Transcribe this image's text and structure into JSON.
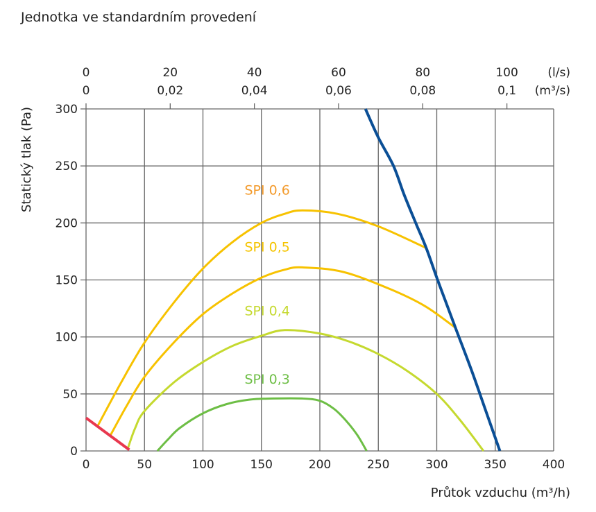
{
  "title": "Jednotka ve standardním provedení",
  "chart_data": {
    "type": "line",
    "title": "Jednotka ve standardním provedení",
    "xlabel": "Průtok vzduchu  (m³/h)",
    "ylabel": "Statický tlak (Pa)",
    "xlim": [
      0,
      400
    ],
    "ylim": [
      0,
      300
    ],
    "x_ticks": [
      0,
      50,
      100,
      150,
      200,
      250,
      300,
      350,
      400
    ],
    "y_ticks": [
      0,
      50,
      100,
      150,
      200,
      250,
      300
    ],
    "grid": true,
    "top_axes": [
      {
        "unit": "(l/s)",
        "ticks": [
          "0",
          "20",
          "40",
          "60",
          "80",
          "100"
        ],
        "values": [
          0,
          20,
          40,
          60,
          80,
          100
        ]
      },
      {
        "unit": "(m³/s)",
        "ticks": [
          "0",
          "0,02",
          "0,04",
          "0,06",
          "0,08",
          "0,1"
        ],
        "values": [
          0,
          0.02,
          0.04,
          0.06,
          0.08,
          0.1
        ]
      }
    ],
    "series": [
      {
        "name": "SPI 0,6",
        "color": "#f7c200",
        "label_color": "#f39a2b",
        "label_at": [
          155,
          225
        ],
        "points": [
          [
            10,
            22
          ],
          [
            30,
            60
          ],
          [
            50,
            95
          ],
          [
            75,
            130
          ],
          [
            100,
            160
          ],
          [
            125,
            183
          ],
          [
            150,
            200
          ],
          [
            170,
            208
          ],
          [
            185,
            211
          ],
          [
            215,
            208
          ],
          [
            250,
            197
          ],
          [
            291,
            178
          ]
        ]
      },
      {
        "name": "SPI 0,5",
        "color": "#f7c200",
        "label_color": "#f5c400",
        "label_at": [
          155,
          175
        ],
        "points": [
          [
            21,
            14
          ],
          [
            35,
            40
          ],
          [
            50,
            65
          ],
          [
            75,
            95
          ],
          [
            100,
            120
          ],
          [
            125,
            138
          ],
          [
            150,
            152
          ],
          [
            170,
            159
          ],
          [
            185,
            161
          ],
          [
            220,
            157
          ],
          [
            260,
            142
          ],
          [
            290,
            127
          ],
          [
            316,
            108
          ]
        ]
      },
      {
        "name": "SPI 0,4",
        "color": "#c5d92f",
        "label_color": "#c5d92f",
        "label_at": [
          155,
          119
        ],
        "points": [
          [
            36,
            3
          ],
          [
            42,
            20
          ],
          [
            50,
            35
          ],
          [
            75,
            60
          ],
          [
            100,
            78
          ],
          [
            125,
            92
          ],
          [
            150,
            101
          ],
          [
            170,
            106
          ],
          [
            200,
            103
          ],
          [
            225,
            96
          ],
          [
            250,
            85
          ],
          [
            275,
            70
          ],
          [
            300,
            50
          ],
          [
            320,
            27
          ],
          [
            340,
            0
          ]
        ]
      },
      {
        "name": "SPI 0,3",
        "color": "#6dbe45",
        "label_color": "#6dbe45",
        "label_at": [
          155,
          59
        ],
        "points": [
          [
            61,
            0
          ],
          [
            70,
            10
          ],
          [
            80,
            20
          ],
          [
            100,
            33
          ],
          [
            120,
            41
          ],
          [
            140,
            45
          ],
          [
            160,
            46
          ],
          [
            185,
            46
          ],
          [
            200,
            44
          ],
          [
            212,
            37
          ],
          [
            222,
            27
          ],
          [
            232,
            14
          ],
          [
            240,
            0
          ]
        ]
      },
      {
        "name": "",
        "color": "#0b4f96",
        "points": [
          [
            239,
            300
          ],
          [
            250,
            275
          ],
          [
            263,
            250
          ],
          [
            272,
            225
          ],
          [
            282,
            200
          ],
          [
            291,
            178
          ],
          [
            300,
            152
          ],
          [
            308,
            130
          ],
          [
            316,
            108
          ],
          [
            330,
            70
          ],
          [
            342,
            35
          ],
          [
            354,
            0
          ]
        ]
      },
      {
        "name": "",
        "color": "#e8384f",
        "points": [
          [
            0,
            29
          ],
          [
            37,
            1
          ]
        ]
      }
    ]
  }
}
